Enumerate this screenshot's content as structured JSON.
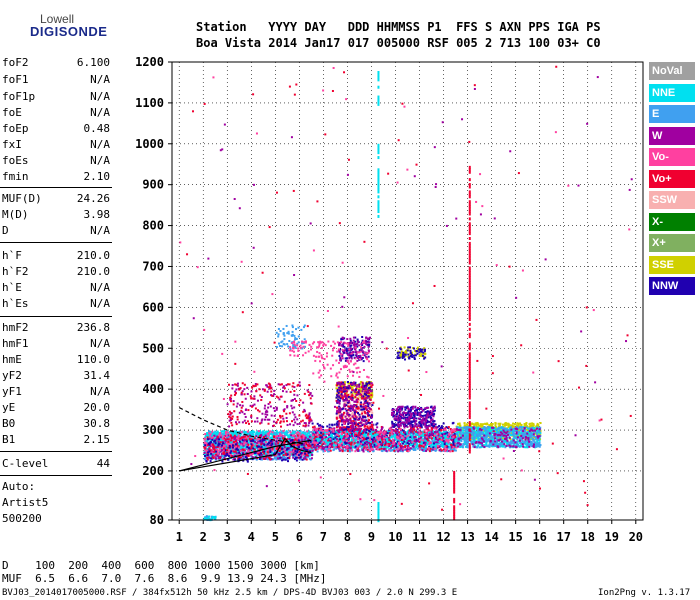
{
  "logo": {
    "line1": "Lowell",
    "line2": "DIGISONDE"
  },
  "header": {
    "line1": "Station   YYYY DAY   DDD HHMMSS P1  FFS S AXN PPS IGA PS",
    "line2": "Boa Vista 2014 Jan17 017 005000 RSF 005 2 713 100 03+ C0"
  },
  "params": {
    "g1": [
      {
        "name": "foF2",
        "value": "6.100"
      },
      {
        "name": "foF1",
        "value": "N/A"
      },
      {
        "name": "foF1p",
        "value": "N/A"
      },
      {
        "name": "foE",
        "value": "N/A"
      },
      {
        "name": "foEp",
        "value": "0.48"
      },
      {
        "name": "fxI",
        "value": "N/A"
      },
      {
        "name": "foEs",
        "value": "N/A"
      },
      {
        "name": "fmin",
        "value": "2.10"
      }
    ],
    "g2": [
      {
        "name": "MUF(D)",
        "value": "24.26"
      },
      {
        "name": "M(D)",
        "value": "3.98"
      },
      {
        "name": "D",
        "value": "N/A"
      }
    ],
    "g3": [
      {
        "name": "h`F",
        "value": "210.0"
      },
      {
        "name": "h`F2",
        "value": "210.0"
      },
      {
        "name": "h`E",
        "value": "N/A"
      },
      {
        "name": "h`Es",
        "value": "N/A"
      }
    ],
    "g4": [
      {
        "name": "hmF2",
        "value": "236.8"
      },
      {
        "name": "hmF1",
        "value": "N/A"
      },
      {
        "name": "hmE",
        "value": "110.0"
      },
      {
        "name": "yF2",
        "value": "31.4"
      },
      {
        "name": "yF1",
        "value": "N/A"
      },
      {
        "name": "yE",
        "value": "20.0"
      },
      {
        "name": "B0",
        "value": "30.8"
      },
      {
        "name": "B1",
        "value": "2.15"
      }
    ],
    "g5": [
      {
        "name": "C-level",
        "value": "44"
      }
    ],
    "auto": [
      "Auto:",
      "Artist5",
      "500200"
    ]
  },
  "footer": {
    "d_line": "D    100  200  400  600  800 1000 1500 3000 [km]",
    "muf_line": "MUF  6.5  6.6  7.0  7.6  8.6  9.9 13.9 24.3 [MHz]",
    "file_line": "BVJ03_2014017005000.RSF / 384fx512h 50 kHz 2.5 km / DPS-4D BVJ03 003 / 2.0 N 299.3 E",
    "version": "Ion2Png v. 1.3.17"
  },
  "legend": [
    {
      "label": "NoVal",
      "color": "#a0a0a0"
    },
    {
      "label": "NNE",
      "color": "#00e0f0"
    },
    {
      "label": "E",
      "color": "#40a0f0"
    },
    {
      "label": "W",
      "color": "#a000a0"
    },
    {
      "label": "Vo-",
      "color": "#ff40a0"
    },
    {
      "label": "Vo+",
      "color": "#f00030"
    },
    {
      "label": "SSW",
      "color": "#f8b0b0"
    },
    {
      "label": "X-",
      "color": "#008000"
    },
    {
      "label": "X+",
      "color": "#80b060"
    },
    {
      "label": "SSE",
      "color": "#d0d000"
    },
    {
      "label": "NNW",
      "color": "#2000b0"
    }
  ],
  "chart_data": {
    "type": "scatter",
    "xlim": [
      0.7,
      20.3
    ],
    "ylim": [
      80,
      1200
    ],
    "x_ticks": [
      1,
      2,
      3,
      4,
      5,
      6,
      7,
      8,
      9,
      10,
      11,
      12,
      13,
      14,
      15,
      16,
      17,
      18,
      19,
      20
    ],
    "y_ticks": [
      80,
      200,
      300,
      400,
      500,
      600,
      700,
      800,
      900,
      1000,
      1100,
      1200
    ],
    "grid": true,
    "legend_position": "right",
    "clusters": [
      {
        "color": "#40a0f0",
        "x": [
          2.0,
          6.5
        ],
        "y": [
          230,
          300
        ],
        "n": 900
      },
      {
        "color": "#00e0f0",
        "x": [
          2.0,
          6.5
        ],
        "y": [
          240,
          300
        ],
        "n": 700
      },
      {
        "color": "#a000a0",
        "x": [
          2.0,
          6.5
        ],
        "y": [
          230,
          290
        ],
        "n": 300
      },
      {
        "color": "#ff40a0",
        "x": [
          2.0,
          6.5
        ],
        "y": [
          240,
          300
        ],
        "n": 250
      },
      {
        "color": "#f00030",
        "x": [
          2.0,
          6.5
        ],
        "y": [
          230,
          290
        ],
        "n": 150
      },
      {
        "color": "#2000b0",
        "x": [
          2.0,
          6.5
        ],
        "y": [
          225,
          280
        ],
        "n": 150
      },
      {
        "color": "#40a0f0",
        "x": [
          6.5,
          12.5
        ],
        "y": [
          250,
          300
        ],
        "n": 900
      },
      {
        "color": "#00e0f0",
        "x": [
          6.5,
          12.5
        ],
        "y": [
          260,
          300
        ],
        "n": 700
      },
      {
        "color": "#2000b0",
        "x": [
          6.5,
          12.5
        ],
        "y": [
          260,
          320
        ],
        "n": 250
      },
      {
        "color": "#f00030",
        "x": [
          6.5,
          12.5
        ],
        "y": [
          250,
          310
        ],
        "n": 200
      },
      {
        "color": "#a000a0",
        "x": [
          6.5,
          12.5
        ],
        "y": [
          250,
          310
        ],
        "n": 200
      },
      {
        "color": "#ff40a0",
        "x": [
          6.5,
          12.5
        ],
        "y": [
          250,
          310
        ],
        "n": 200
      },
      {
        "color": "#d0d000",
        "x": [
          12.5,
          16.0
        ],
        "y": [
          280,
          320
        ],
        "n": 500
      },
      {
        "color": "#00e0f0",
        "x": [
          12.5,
          16.0
        ],
        "y": [
          260,
          310
        ],
        "n": 500
      },
      {
        "color": "#40a0f0",
        "x": [
          12.5,
          16.0
        ],
        "y": [
          260,
          310
        ],
        "n": 400
      },
      {
        "color": "#a000a0",
        "x": [
          12.5,
          16.0
        ],
        "y": [
          260,
          310
        ],
        "n": 120
      },
      {
        "color": "#d0d000",
        "x": [
          7.5,
          9.0
        ],
        "y": [
          380,
          420
        ],
        "n": 180
      },
      {
        "color": "#f8b0b0",
        "x": [
          7.5,
          9.0
        ],
        "y": [
          310,
          400
        ],
        "n": 150
      },
      {
        "color": "#f00030",
        "x": [
          7.5,
          9.0
        ],
        "y": [
          300,
          420
        ],
        "n": 200
      },
      {
        "color": "#2000b0",
        "x": [
          7.5,
          9.0
        ],
        "y": [
          300,
          420
        ],
        "n": 150
      },
      {
        "color": "#a000a0",
        "x": [
          7.5,
          9.0
        ],
        "y": [
          300,
          420
        ],
        "n": 150
      },
      {
        "color": "#2000b0",
        "x": [
          9.8,
          11.6
        ],
        "y": [
          310,
          360
        ],
        "n": 220
      },
      {
        "color": "#a000a0",
        "x": [
          9.8,
          11.6
        ],
        "y": [
          310,
          360
        ],
        "n": 120
      },
      {
        "color": "#2000b0",
        "x": [
          7.6,
          8.9
        ],
        "y": [
          470,
          530
        ],
        "n": 100
      },
      {
        "color": "#a000a0",
        "x": [
          7.6,
          8.9
        ],
        "y": [
          470,
          530
        ],
        "n": 80
      },
      {
        "color": "#d0d000",
        "x": [
          10.0,
          11.2
        ],
        "y": [
          480,
          505
        ],
        "n": 60
      },
      {
        "color": "#2000b0",
        "x": [
          10.0,
          11.2
        ],
        "y": [
          475,
          505
        ],
        "n": 50
      },
      {
        "color": "#40a0f0",
        "x": [
          5.0,
          6.2
        ],
        "y": [
          500,
          560
        ],
        "n": 60
      },
      {
        "color": "#ff40a0",
        "x": [
          5.5,
          7.0
        ],
        "y": [
          480,
          520
        ],
        "n": 40
      },
      {
        "color": "#a000a0",
        "x": [
          3.0,
          6.5
        ],
        "y": [
          310,
          420
        ],
        "n": 150
      },
      {
        "color": "#f00030",
        "x": [
          3.0,
          6.5
        ],
        "y": [
          310,
          420
        ],
        "n": 120
      },
      {
        "color": "#ff40a0",
        "x": [
          6.5,
          9.0
        ],
        "y": [
          430,
          520
        ],
        "n": 100
      },
      {
        "color": "#f00030",
        "x": [
          1.0,
          20.0
        ],
        "y": [
          100,
          1200
        ],
        "n": 70
      },
      {
        "color": "#a000a0",
        "x": [
          1.0,
          20.0
        ],
        "y": [
          100,
          1200
        ],
        "n": 50
      },
      {
        "color": "#ff40a0",
        "x": [
          1.0,
          20.0
        ],
        "y": [
          100,
          1200
        ],
        "n": 50
      },
      {
        "color": "#40a0f0",
        "x": [
          2.0,
          2.5
        ],
        "y": [
          82,
          92
        ],
        "n": 30
      },
      {
        "color": "#00e0f0",
        "x": [
          2.0,
          2.5
        ],
        "y": [
          82,
          92
        ],
        "n": 20
      }
    ],
    "vertical_streaks": [
      {
        "color": "#00e0f0",
        "x": 9.25,
        "y": [
          820,
          1000
        ]
      },
      {
        "color": "#00e0f0",
        "x": 9.25,
        "y": [
          1100,
          1180
        ]
      },
      {
        "color": "#00e0f0",
        "x": 9.25,
        "y": [
          82,
          140
        ]
      },
      {
        "color": "#f00030",
        "x": 13.05,
        "y": [
          250,
          950
        ]
      },
      {
        "color": "#f00030",
        "x": 12.4,
        "y": [
          80,
          200
        ]
      }
    ],
    "profile_curve": {
      "color": "#000000",
      "x": [
        1.0,
        2.0,
        3.0,
        4.0,
        5.0,
        5.4,
        5.7,
        6.1,
        6.5
      ],
      "y": [
        200,
        210,
        220,
        230,
        240,
        280,
        260,
        250,
        245
      ]
    },
    "profile_curve2": {
      "color": "#000000",
      "x": [
        1.0,
        2.0,
        3.0,
        4.0,
        5.0,
        6.0,
        6.5
      ],
      "y": [
        200,
        215,
        230,
        245,
        260,
        270,
        275
      ]
    },
    "dashed_curve": {
      "color": "#000000",
      "x": [
        1.0,
        2.0,
        3.0,
        4.0,
        5.0,
        6.0,
        6.3
      ],
      "y": [
        355,
        325,
        300,
        285,
        275,
        268,
        265
      ]
    }
  }
}
